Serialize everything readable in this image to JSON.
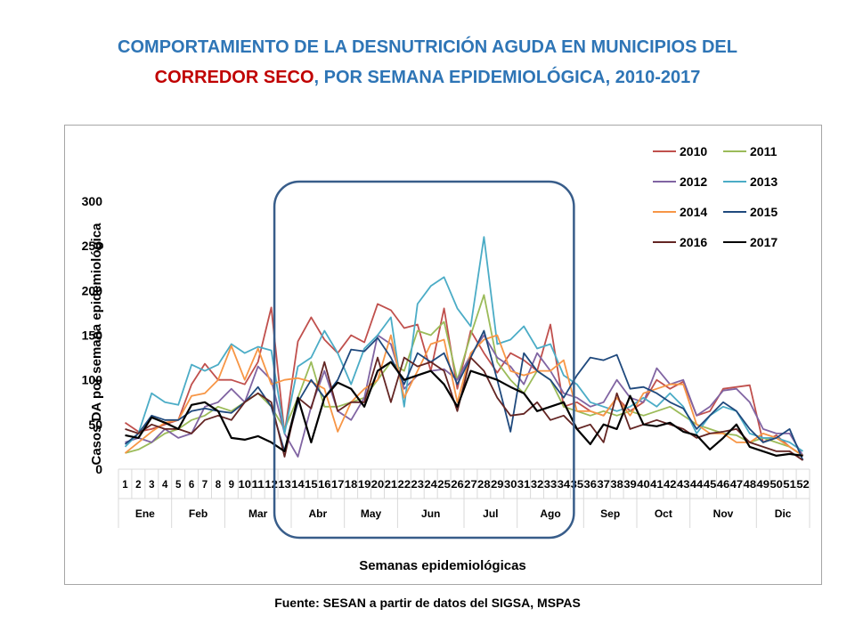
{
  "title": {
    "line1": "COMPORTAMIENTO DE LA DESNUTRICIÓN AGUDA EN MUNICIPIOS DEL",
    "line2_red": "CORREDOR SECO",
    "line2_rest": ", POR SEMANA EPIDEMIOLÓGICA, 2010-2017"
  },
  "source": "Fuente: SESAN a partir de datos del SIGSA, MSPAS",
  "chart_data": {
    "type": "line",
    "title": "COMPORTAMIENTO DE LA DESNUTRICIÓN AGUDA EN MUNICIPIOS DEL CORREDOR SECO, POR SEMANA EPIDEMIOLÓGICA, 2010-2017",
    "xlabel": "Semanas epidemiológicas",
    "ylabel": "Casos DA por semana epidemiológica",
    "ylim": [
      0,
      300
    ],
    "yticks": [
      0,
      50,
      100,
      150,
      200,
      250,
      300
    ],
    "grid": false,
    "legend": "top-right",
    "x": [
      "1",
      "2",
      "3",
      "4",
      "5",
      "6",
      "7",
      "8",
      "9",
      "10",
      "11",
      "12",
      "13",
      "14",
      "15",
      "16",
      "17",
      "18",
      "19",
      "20",
      "21",
      "22",
      "23",
      "24",
      "25",
      "26",
      "27",
      "28",
      "29",
      "30",
      "31",
      "32",
      "33",
      "34",
      "35",
      "36",
      "37",
      "38",
      "39",
      "40",
      "41",
      "42",
      "43",
      "44",
      "45",
      "46",
      "47",
      "48",
      "49",
      "50",
      "51",
      "52"
    ],
    "months": [
      {
        "name": "Ene",
        "start": 1,
        "end": 4
      },
      {
        "name": "Feb",
        "start": 5,
        "end": 8
      },
      {
        "name": "Mar",
        "start": 9,
        "end": 13
      },
      {
        "name": "Abr",
        "start": 14,
        "end": 17
      },
      {
        "name": "May",
        "start": 18,
        "end": 21
      },
      {
        "name": "Jun",
        "start": 22,
        "end": 26
      },
      {
        "name": "Jul",
        "start": 27,
        "end": 30
      },
      {
        "name": "Ago",
        "start": 31,
        "end": 35
      },
      {
        "name": "Sep",
        "start": 36,
        "end": 39
      },
      {
        "name": "Oct",
        "start": 40,
        "end": 43
      },
      {
        "name": "Nov",
        "start": 44,
        "end": 48
      },
      {
        "name": "Dic",
        "start": 49,
        "end": 52
      }
    ],
    "highlight": {
      "from_week": 13,
      "to_week": 34
    },
    "series": [
      {
        "name": "2010",
        "color": "#C0504D",
        "values": [
          52,
          42,
          45,
          50,
          55,
          95,
          118,
          100,
          100,
          95,
          120,
          181,
          40,
          143,
          170,
          145,
          130,
          150,
          142,
          185,
          178,
          158,
          162,
          110,
          180,
          90,
          155,
          130,
          108,
          130,
          122,
          110,
          162,
          70,
          75,
          65,
          60,
          80,
          65,
          75,
          100,
          90,
          98,
          60,
          65,
          90,
          92,
          94,
          30,
          38,
          25,
          15
        ]
      },
      {
        "name": "2011",
        "color": "#9BBB59",
        "values": [
          18,
          22,
          30,
          40,
          45,
          55,
          60,
          70,
          65,
          75,
          85,
          70,
          45,
          80,
          120,
          70,
          70,
          75,
          80,
          100,
          120,
          110,
          155,
          150,
          165,
          100,
          150,
          195,
          120,
          100,
          85,
          110,
          100,
          70,
          65,
          60,
          65,
          60,
          65,
          60,
          65,
          70,
          60,
          50,
          45,
          40,
          38,
          30,
          35,
          30,
          25,
          15
        ]
      },
      {
        "name": "2012",
        "color": "#8064A2",
        "values": [
          30,
          35,
          30,
          45,
          35,
          40,
          70,
          75,
          90,
          75,
          115,
          100,
          40,
          14,
          70,
          110,
          65,
          55,
          80,
          150,
          140,
          90,
          105,
          110,
          112,
          100,
          128,
          150,
          125,
          115,
          95,
          130,
          110,
          85,
          80,
          70,
          75,
          100,
          80,
          75,
          113,
          95,
          100,
          60,
          70,
          88,
          90,
          75,
          45,
          40,
          40,
          15
        ]
      },
      {
        "name": "2013",
        "color": "#4BACC6",
        "values": [
          25,
          40,
          85,
          75,
          72,
          117,
          110,
          117,
          140,
          130,
          137,
          133,
          40,
          115,
          125,
          155,
          130,
          95,
          135,
          150,
          170,
          70,
          185,
          205,
          215,
          180,
          160,
          260,
          140,
          145,
          160,
          135,
          140,
          105,
          95,
          75,
          70,
          65,
          70,
          80,
          70,
          85,
          70,
          40,
          60,
          70,
          65,
          40,
          35,
          35,
          30,
          20
        ]
      },
      {
        "name": "2014",
        "color": "#F79646",
        "values": [
          18,
          30,
          42,
          52,
          55,
          82,
          85,
          100,
          138,
          100,
          135,
          95,
          100,
          102,
          98,
          90,
          42,
          75,
          90,
          100,
          150,
          80,
          110,
          140,
          145,
          75,
          130,
          145,
          150,
          110,
          105,
          110,
          110,
          122,
          65,
          65,
          60,
          80,
          60,
          85,
          90,
          95,
          95,
          50,
          40,
          40,
          30,
          30,
          40,
          35,
          25,
          15
        ]
      },
      {
        "name": "2015",
        "color": "#1F497D",
        "values": [
          28,
          40,
          60,
          55,
          55,
          65,
          68,
          65,
          63,
          75,
          92,
          70,
          20,
          75,
          100,
          80,
          100,
          134,
          132,
          147,
          125,
          95,
          130,
          120,
          130,
          95,
          125,
          155,
          100,
          42,
          130,
          110,
          100,
          80,
          105,
          125,
          122,
          128,
          90,
          92,
          85,
          75,
          68,
          45,
          60,
          75,
          65,
          45,
          30,
          35,
          45,
          10
        ]
      },
      {
        "name": "2016",
        "color": "#632523",
        "values": [
          45,
          40,
          50,
          45,
          45,
          40,
          55,
          60,
          55,
          75,
          85,
          75,
          14,
          80,
          68,
          120,
          65,
          75,
          75,
          125,
          75,
          125,
          115,
          120,
          110,
          65,
          125,
          110,
          80,
          60,
          62,
          75,
          55,
          60,
          45,
          50,
          30,
          85,
          45,
          50,
          55,
          50,
          45,
          35,
          40,
          42,
          45,
          30,
          25,
          20,
          20,
          10
        ]
      },
      {
        "name": "2017",
        "color": "#000000",
        "values": [
          38,
          35,
          58,
          52,
          45,
          72,
          75,
          65,
          35,
          33,
          37,
          30,
          20,
          80,
          30,
          80,
          97,
          90,
          70,
          110,
          120,
          100,
          105,
          110,
          95,
          70,
          110,
          105,
          100,
          92,
          85,
          65,
          70,
          75,
          45,
          28,
          50,
          45,
          82,
          50,
          48,
          52,
          42,
          38,
          22,
          35,
          50,
          25,
          20,
          15,
          17,
          15
        ]
      }
    ]
  }
}
